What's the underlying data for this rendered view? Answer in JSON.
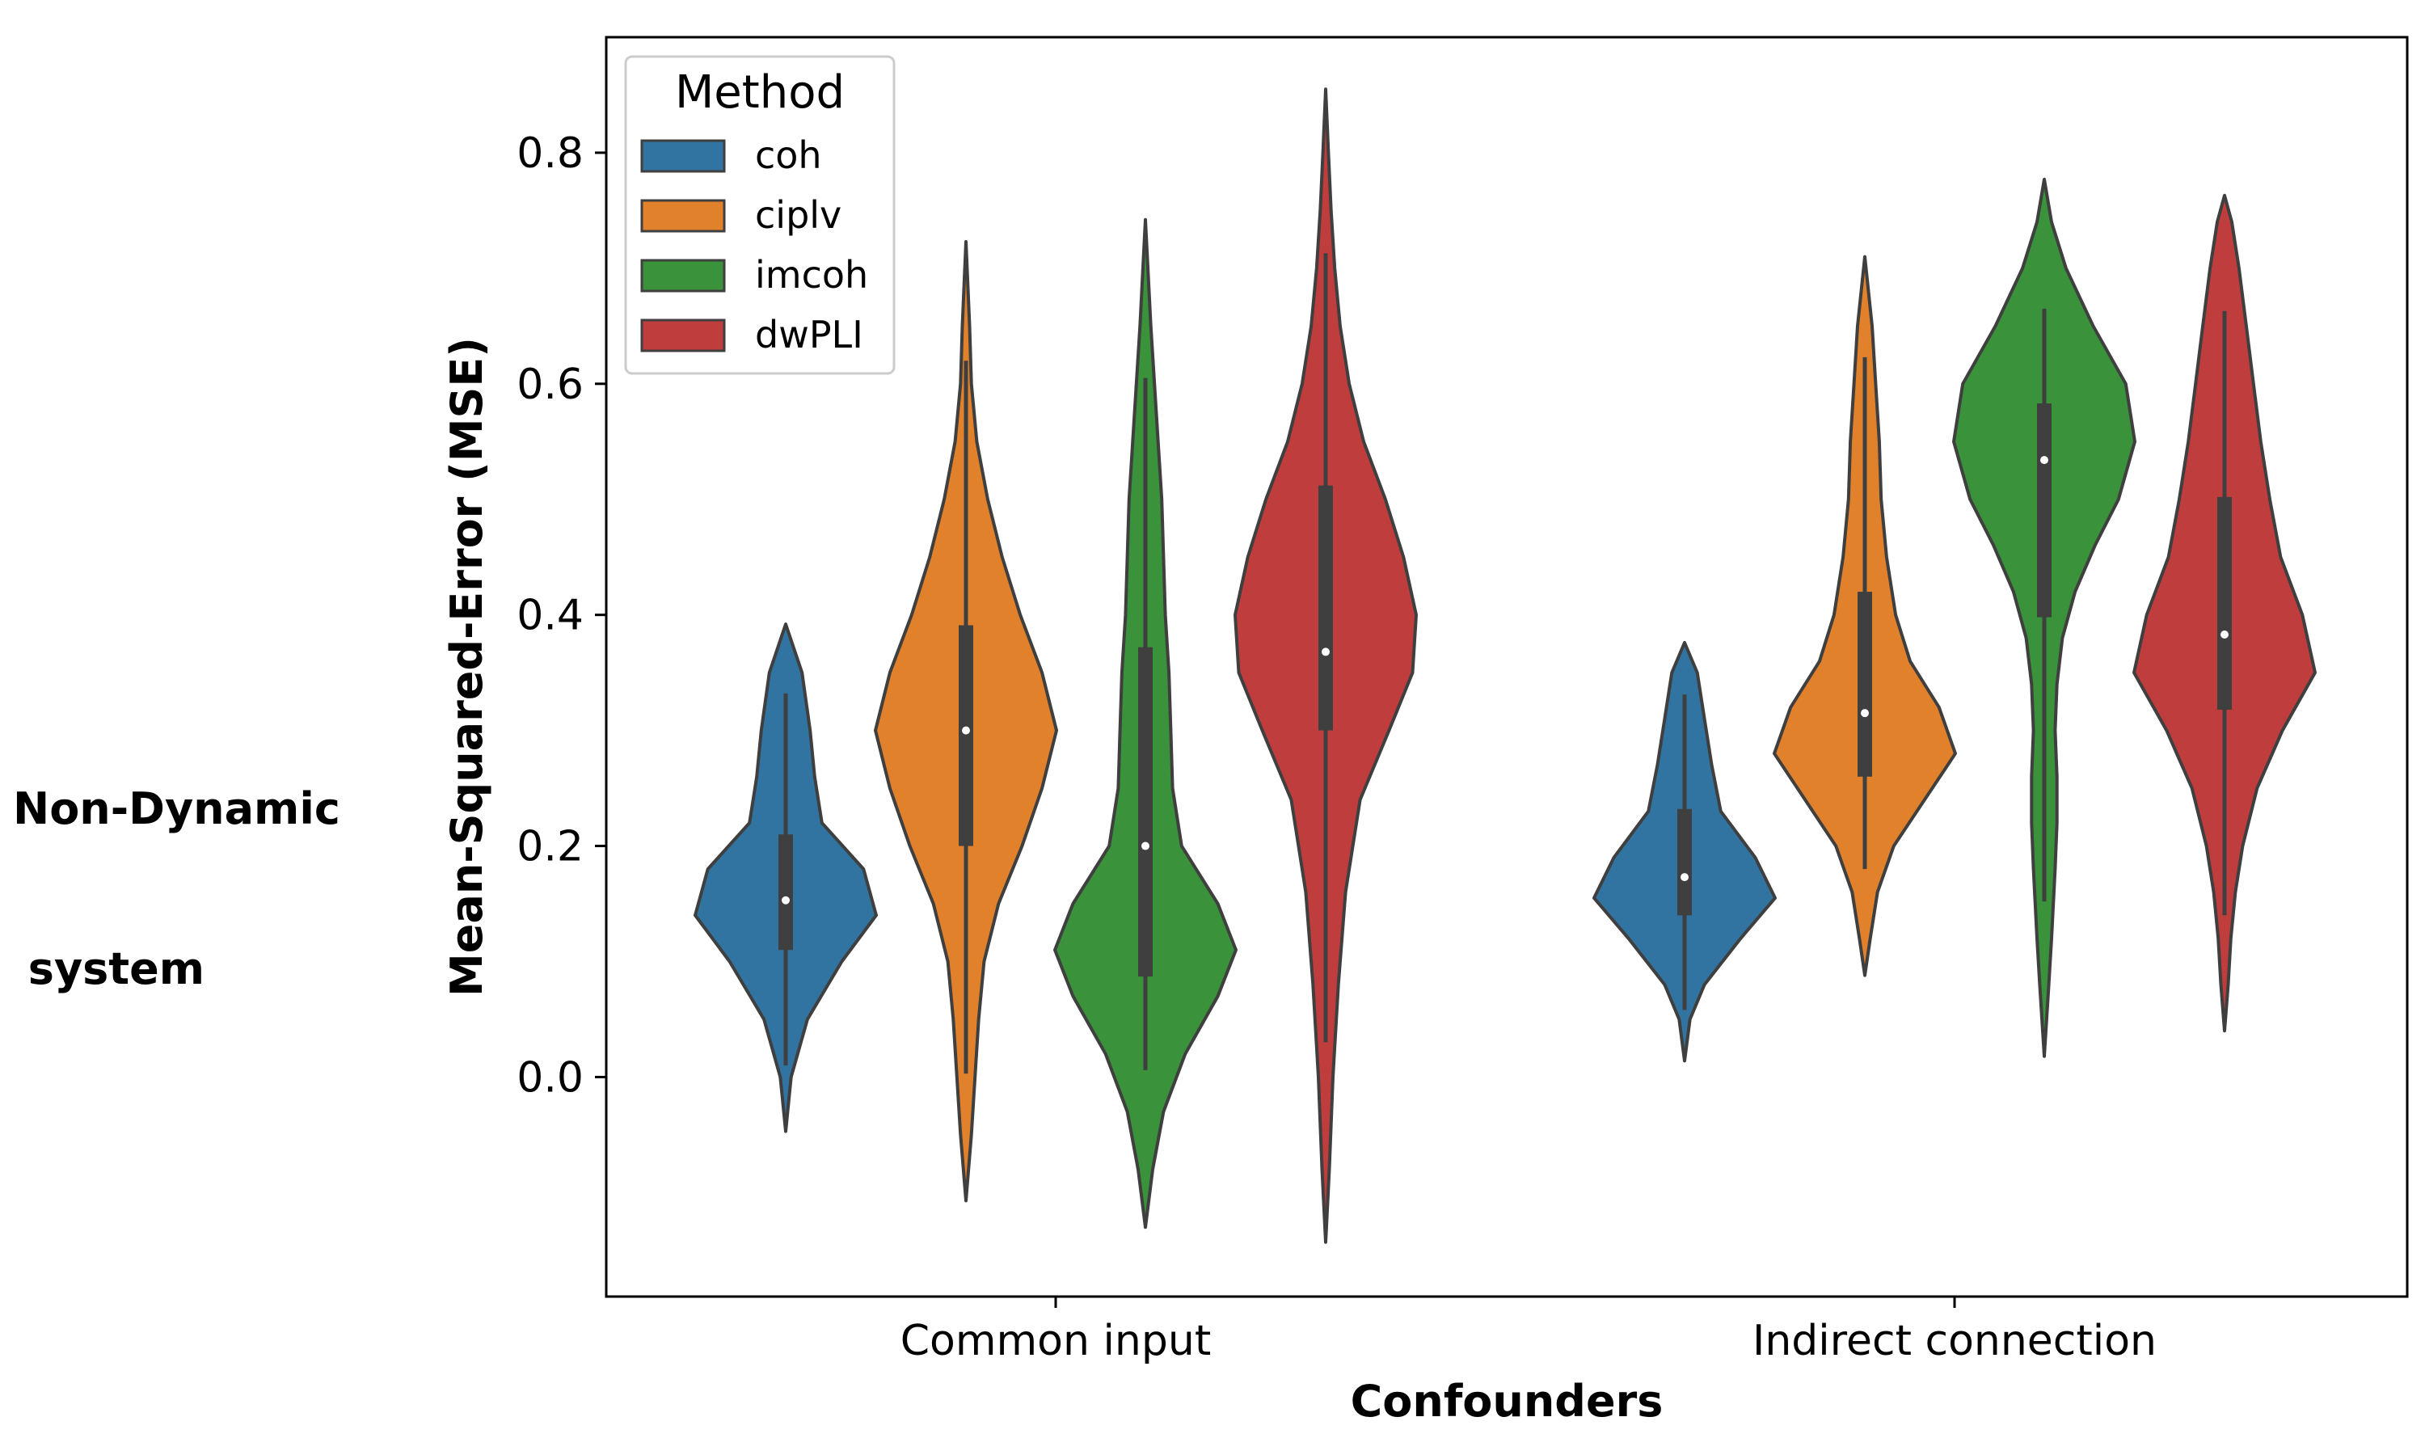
{
  "row_label_lines": [
    "Non-Dynamic",
    " system"
  ],
  "chart_data": {
    "type": "violin",
    "xlabel": "Confounders",
    "ylabel": "Mean-Squared-Error (MSE)",
    "categories": [
      "Common input",
      "Indirect connection"
    ],
    "ylim": [
      -0.19,
      0.9
    ],
    "yticks": [
      "0.0",
      "0.2",
      "0.4",
      "0.6",
      "0.8"
    ],
    "grid": false,
    "legend": {
      "title": "Method",
      "placement": "top-left",
      "entries": [
        {
          "label": "coh",
          "color": "#3274a1"
        },
        {
          "label": "ciplv",
          "color": "#e1812c"
        },
        {
          "label": "imcoh",
          "color": "#3a923a"
        },
        {
          "label": "dwPLI",
          "color": "#c03d3e"
        }
      ]
    },
    "series": [
      {
        "method": "coh",
        "color": "#3274a1",
        "violins": [
          {
            "category": "Common input",
            "median": 0.153,
            "q1": 0.11,
            "q3": 0.21,
            "whisker_low": 0.01,
            "whisker_high": 0.332,
            "kde_min": -0.047,
            "kde_max": 0.392,
            "profile": [
              [
                -0.047,
                0
              ],
              [
                0.0,
                0.06
              ],
              [
                0.05,
                0.24
              ],
              [
                0.1,
                0.62
              ],
              [
                0.14,
                1.0
              ],
              [
                0.18,
                0.86
              ],
              [
                0.22,
                0.4
              ],
              [
                0.26,
                0.32
              ],
              [
                0.3,
                0.27
              ],
              [
                0.35,
                0.18
              ],
              [
                0.392,
                0
              ]
            ]
          },
          {
            "category": "Indirect connection",
            "median": 0.173,
            "q1": 0.14,
            "q3": 0.232,
            "whisker_low": 0.058,
            "whisker_high": 0.331,
            "kde_min": 0.014,
            "kde_max": 0.376,
            "profile": [
              [
                0.014,
                0
              ],
              [
                0.05,
                0.06
              ],
              [
                0.08,
                0.22
              ],
              [
                0.12,
                0.62
              ],
              [
                0.155,
                1.0
              ],
              [
                0.19,
                0.78
              ],
              [
                0.23,
                0.4
              ],
              [
                0.27,
                0.3
              ],
              [
                0.31,
                0.22
              ],
              [
                0.35,
                0.14
              ],
              [
                0.376,
                0
              ]
            ]
          }
        ]
      },
      {
        "method": "ciplv",
        "color": "#e1812c",
        "violins": [
          {
            "category": "Common input",
            "median": 0.3,
            "q1": 0.2,
            "q3": 0.391,
            "whisker_low": 0.003,
            "whisker_high": 0.62,
            "kde_min": -0.107,
            "kde_max": 0.723,
            "profile": [
              [
                -0.107,
                0
              ],
              [
                -0.05,
                0.06
              ],
              [
                0.0,
                0.1
              ],
              [
                0.05,
                0.14
              ],
              [
                0.1,
                0.2
              ],
              [
                0.15,
                0.36
              ],
              [
                0.2,
                0.62
              ],
              [
                0.25,
                0.84
              ],
              [
                0.3,
                1.0
              ],
              [
                0.35,
                0.84
              ],
              [
                0.4,
                0.6
              ],
              [
                0.45,
                0.4
              ],
              [
                0.5,
                0.24
              ],
              [
                0.55,
                0.12
              ],
              [
                0.6,
                0.06
              ],
              [
                0.65,
                0.04
              ],
              [
                0.723,
                0
              ]
            ]
          },
          {
            "category": "Indirect connection",
            "median": 0.315,
            "q1": 0.26,
            "q3": 0.42,
            "whisker_low": 0.18,
            "whisker_high": 0.623,
            "kde_min": 0.088,
            "kde_max": 0.71,
            "profile": [
              [
                0.088,
                0
              ],
              [
                0.12,
                0.06
              ],
              [
                0.16,
                0.14
              ],
              [
                0.2,
                0.32
              ],
              [
                0.24,
                0.66
              ],
              [
                0.28,
                1.0
              ],
              [
                0.32,
                0.82
              ],
              [
                0.36,
                0.5
              ],
              [
                0.4,
                0.34
              ],
              [
                0.45,
                0.24
              ],
              [
                0.5,
                0.18
              ],
              [
                0.55,
                0.16
              ],
              [
                0.6,
                0.12
              ],
              [
                0.65,
                0.08
              ],
              [
                0.71,
                0
              ]
            ]
          }
        ]
      },
      {
        "method": "imcoh",
        "color": "#3a923a",
        "violins": [
          {
            "category": "Common input",
            "median": 0.2,
            "q1": 0.087,
            "q3": 0.372,
            "whisker_low": 0.006,
            "whisker_high": 0.605,
            "kde_min": -0.13,
            "kde_max": 0.742,
            "profile": [
              [
                -0.13,
                0
              ],
              [
                -0.08,
                0.08
              ],
              [
                -0.03,
                0.2
              ],
              [
                0.02,
                0.44
              ],
              [
                0.07,
                0.8
              ],
              [
                0.11,
                1.0
              ],
              [
                0.15,
                0.8
              ],
              [
                0.2,
                0.4
              ],
              [
                0.25,
                0.3
              ],
              [
                0.3,
                0.28
              ],
              [
                0.35,
                0.26
              ],
              [
                0.4,
                0.22
              ],
              [
                0.45,
                0.2
              ],
              [
                0.5,
                0.18
              ],
              [
                0.55,
                0.14
              ],
              [
                0.6,
                0.1
              ],
              [
                0.65,
                0.06
              ],
              [
                0.742,
                0
              ]
            ]
          },
          {
            "category": "Indirect connection",
            "median": 0.534,
            "q1": 0.398,
            "q3": 0.583,
            "whisker_low": 0.152,
            "whisker_high": 0.665,
            "kde_min": 0.018,
            "kde_max": 0.777,
            "profile": [
              [
                0.018,
                0
              ],
              [
                0.08,
                0.05
              ],
              [
                0.12,
                0.08
              ],
              [
                0.18,
                0.12
              ],
              [
                0.22,
                0.14
              ],
              [
                0.26,
                0.14
              ],
              [
                0.3,
                0.12
              ],
              [
                0.34,
                0.14
              ],
              [
                0.38,
                0.2
              ],
              [
                0.42,
                0.34
              ],
              [
                0.46,
                0.56
              ],
              [
                0.5,
                0.82
              ],
              [
                0.55,
                1.0
              ],
              [
                0.6,
                0.9
              ],
              [
                0.65,
                0.54
              ],
              [
                0.7,
                0.24
              ],
              [
                0.74,
                0.08
              ],
              [
                0.777,
                0
              ]
            ]
          }
        ]
      },
      {
        "method": "dwPLI",
        "color": "#c03d3e",
        "violins": [
          {
            "category": "Common input",
            "median": 0.368,
            "q1": 0.3,
            "q3": 0.512,
            "whisker_low": 0.03,
            "whisker_high": 0.713,
            "kde_min": -0.143,
            "kde_max": 0.855,
            "profile": [
              [
                -0.143,
                0
              ],
              [
                -0.08,
                0.04
              ],
              [
                0.0,
                0.08
              ],
              [
                0.08,
                0.14
              ],
              [
                0.16,
                0.22
              ],
              [
                0.24,
                0.38
              ],
              [
                0.3,
                0.7
              ],
              [
                0.35,
                0.96
              ],
              [
                0.4,
                1.0
              ],
              [
                0.45,
                0.86
              ],
              [
                0.5,
                0.66
              ],
              [
                0.55,
                0.42
              ],
              [
                0.6,
                0.26
              ],
              [
                0.65,
                0.16
              ],
              [
                0.7,
                0.1
              ],
              [
                0.75,
                0.06
              ],
              [
                0.8,
                0.03
              ],
              [
                0.855,
                0
              ]
            ]
          },
          {
            "category": "Indirect connection",
            "median": 0.383,
            "q1": 0.318,
            "q3": 0.502,
            "whisker_low": 0.14,
            "whisker_high": 0.663,
            "kde_min": 0.04,
            "kde_max": 0.763,
            "profile": [
              [
                0.04,
                0
              ],
              [
                0.08,
                0.04
              ],
              [
                0.12,
                0.07
              ],
              [
                0.16,
                0.12
              ],
              [
                0.2,
                0.2
              ],
              [
                0.25,
                0.36
              ],
              [
                0.3,
                0.64
              ],
              [
                0.35,
                1.0
              ],
              [
                0.4,
                0.86
              ],
              [
                0.45,
                0.62
              ],
              [
                0.5,
                0.5
              ],
              [
                0.55,
                0.4
              ],
              [
                0.6,
                0.32
              ],
              [
                0.65,
                0.24
              ],
              [
                0.7,
                0.16
              ],
              [
                0.74,
                0.08
              ],
              [
                0.763,
                0
              ]
            ]
          }
        ]
      }
    ]
  }
}
